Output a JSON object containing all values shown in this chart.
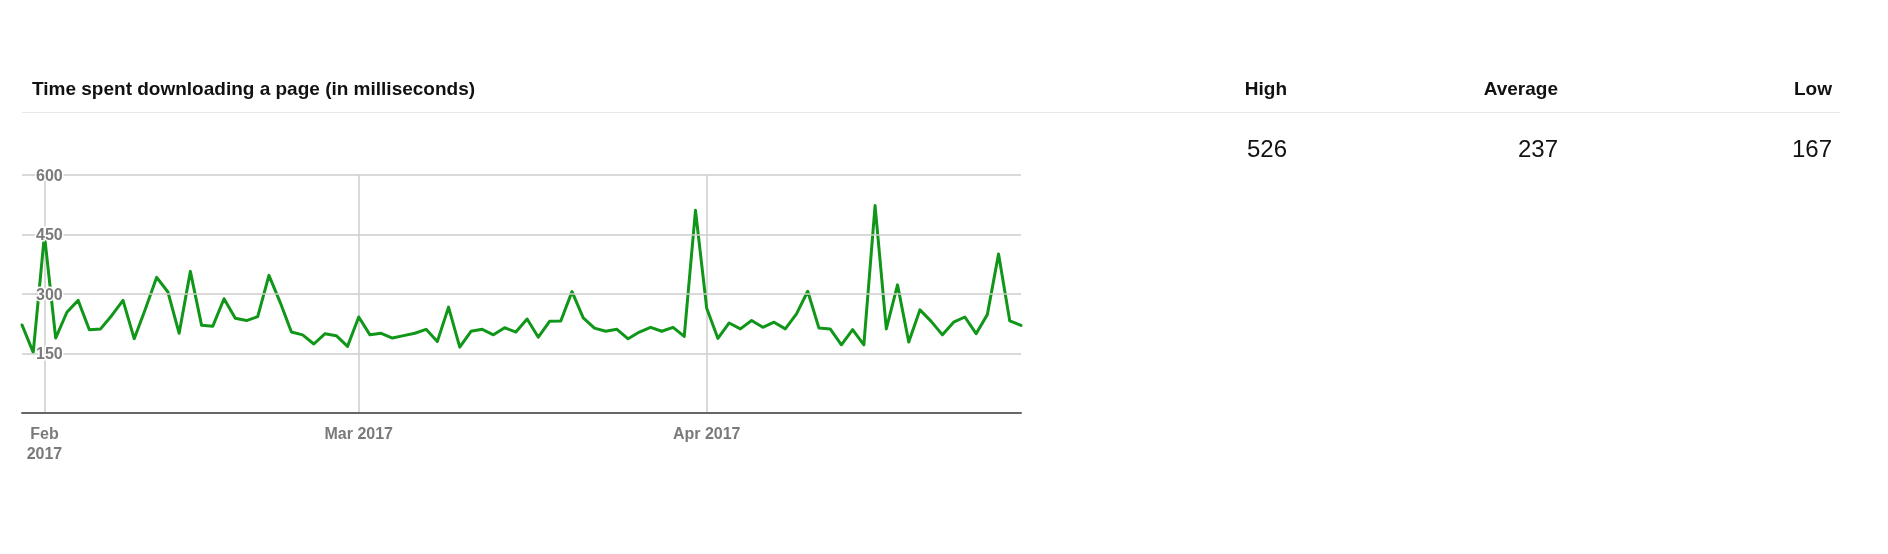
{
  "chart_data": {
    "type": "line",
    "title": "Time spent downloading a page (in milliseconds)",
    "annotations": [
      "High",
      "Average",
      "Low",
      "526",
      "237",
      "167"
    ],
    "x": [
      "2017-01-30",
      "2017-01-31",
      "2017-02-01",
      "2017-02-02",
      "2017-02-03",
      "2017-02-04",
      "2017-02-05",
      "2017-02-06",
      "2017-02-07",
      "2017-02-08",
      "2017-02-09",
      "2017-02-10",
      "2017-02-11",
      "2017-02-12",
      "2017-02-13",
      "2017-02-14",
      "2017-02-15",
      "2017-02-16",
      "2017-02-17",
      "2017-02-18",
      "2017-02-19",
      "2017-02-20",
      "2017-02-21",
      "2017-02-22",
      "2017-02-23",
      "2017-02-24",
      "2017-02-25",
      "2017-02-26",
      "2017-02-27",
      "2017-02-28",
      "2017-03-01",
      "2017-03-02",
      "2017-03-03",
      "2017-03-04",
      "2017-03-05",
      "2017-03-06",
      "2017-03-07",
      "2017-03-08",
      "2017-03-09",
      "2017-03-10",
      "2017-03-11",
      "2017-03-12",
      "2017-03-13",
      "2017-03-14",
      "2017-03-15",
      "2017-03-16",
      "2017-03-17",
      "2017-03-18",
      "2017-03-19",
      "2017-03-20",
      "2017-03-21",
      "2017-03-22",
      "2017-03-23",
      "2017-03-24",
      "2017-03-25",
      "2017-03-26",
      "2017-03-27",
      "2017-03-28",
      "2017-03-29",
      "2017-03-30",
      "2017-03-31",
      "2017-04-01",
      "2017-04-02",
      "2017-04-03",
      "2017-04-04",
      "2017-04-05",
      "2017-04-06",
      "2017-04-07",
      "2017-04-08",
      "2017-04-09",
      "2017-04-10",
      "2017-04-11",
      "2017-04-12",
      "2017-04-13",
      "2017-04-14",
      "2017-04-15",
      "2017-04-16",
      "2017-04-17",
      "2017-04-18",
      "2017-04-19",
      "2017-04-20",
      "2017-04-21",
      "2017-04-22",
      "2017-04-23",
      "2017-04-24",
      "2017-04-25",
      "2017-04-26",
      "2017-04-27",
      "2017-04-28",
      "2017-04-29"
    ],
    "series": [
      {
        "color": "#109618",
        "values": [
          222,
          153,
          449,
          189,
          254,
          284,
          210,
          212,
          246,
          284,
          187,
          263,
          342,
          305,
          201,
          357,
          221,
          219,
          288,
          239,
          233,
          243,
          347,
          279,
          204,
          197,
          174,
          200,
          195,
          168,
          242,
          197,
          201,
          189,
          195,
          201,
          211,
          180,
          267,
          166,
          206,
          211,
          197,
          215,
          204,
          237,
          191,
          231,
          232,
          306,
          240,
          214,
          206,
          211,
          187,
          204,
          216,
          206,
          216,
          193,
          511,
          264,
          188,
          227,
          212,
          233,
          216,
          229,
          212,
          250,
          307,
          214,
          212,
          172,
          210,
          172,
          523,
          212,
          323,
          179,
          260,
          231,
          197,
          229,
          242,
          200,
          248,
          401,
          232,
          221
        ]
      }
    ],
    "xlim": [
      "2017-01-30",
      "2017-04-29"
    ],
    "xticks": [
      {
        "value": "2017-02-01",
        "label": "Feb\n2017"
      },
      {
        "value": "2017-03-01",
        "label": "Mar 2017"
      },
      {
        "value": "2017-04-01",
        "label": "Apr 2017"
      }
    ],
    "ylim": [
      0,
      600
    ],
    "yticks": [
      150,
      300,
      450,
      600
    ],
    "grid": true,
    "marker": "none",
    "line_style": "solid"
  }
}
